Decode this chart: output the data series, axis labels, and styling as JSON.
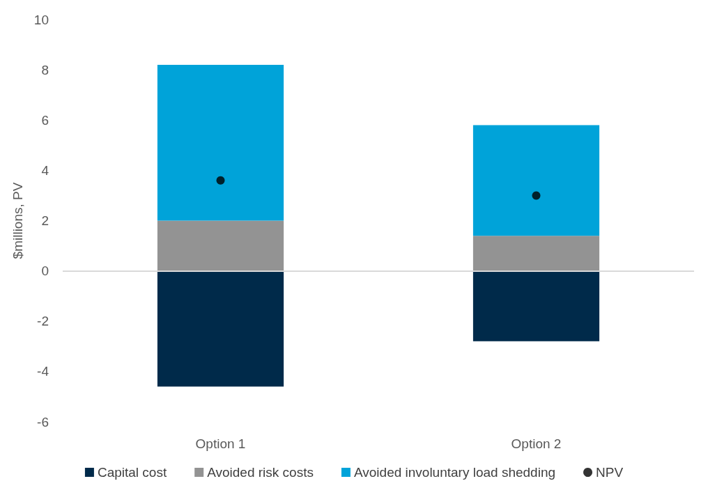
{
  "chart_data": {
    "type": "bar",
    "stacked": true,
    "ylabel": "$millions, PV",
    "categories": [
      "Option 1",
      "Option 2"
    ],
    "series": [
      {
        "name": "Capital cost",
        "color": "#002a4a",
        "values": [
          -4.6,
          -2.8
        ]
      },
      {
        "name": "Avoided risk costs",
        "color": "#939393",
        "values": [
          2.0,
          1.4
        ]
      },
      {
        "name": "Avoided involuntary load shedding",
        "color": "#00a3d9",
        "values": [
          6.2,
          4.4
        ]
      },
      {
        "name": "NPV",
        "type": "scatter",
        "color": "#000000",
        "x": [
          "Option 1",
          "Option 2"
        ],
        "values": [
          3.6,
          3.0
        ],
        "marker": "circle"
      }
    ],
    "ref_lines": [
      {
        "axis": "y",
        "value": 0,
        "color": "#d9d9d9"
      }
    ],
    "ylim": [
      -6,
      10
    ],
    "yticks": [
      -6,
      -4,
      -2,
      0,
      2,
      4,
      6,
      8,
      10
    ],
    "grid": false,
    "legend": "bottom"
  }
}
